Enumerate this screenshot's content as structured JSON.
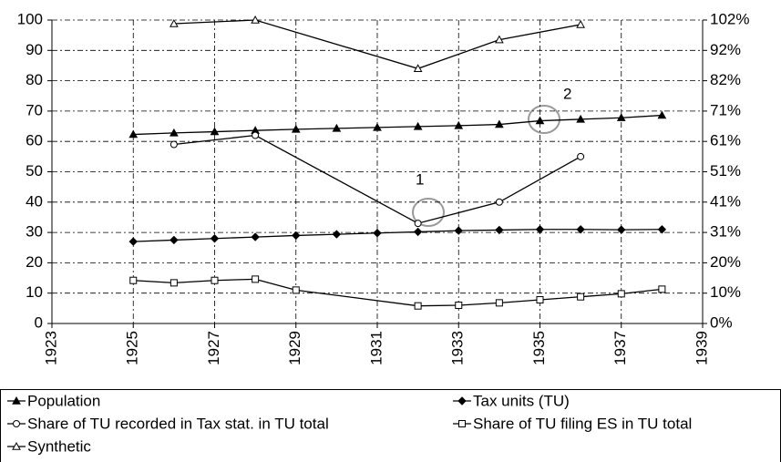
{
  "chart_data": {
    "type": "line",
    "xlim": [
      1923,
      1939
    ],
    "xticks": [
      1923,
      1925,
      1927,
      1929,
      1931,
      1933,
      1935,
      1937,
      1939
    ],
    "ylim": [
      0,
      100
    ],
    "yticks": [
      0,
      10,
      20,
      30,
      40,
      50,
      60,
      70,
      80,
      90,
      100
    ],
    "y2lim": [
      0,
      102
    ],
    "y2ticks": [
      {
        "value": 0,
        "label": "0%"
      },
      {
        "value": 10.2,
        "label": "10%"
      },
      {
        "value": 20.4,
        "label": "20%"
      },
      {
        "value": 30.6,
        "label": "31%"
      },
      {
        "value": 40.8,
        "label": "41%"
      },
      {
        "value": 51,
        "label": "51%"
      },
      {
        "value": 61.2,
        "label": "61%"
      },
      {
        "value": 71.4,
        "label": "71%"
      },
      {
        "value": 81.6,
        "label": "82%"
      },
      {
        "value": 91.8,
        "label": "92%"
      },
      {
        "value": 102,
        "label": "102%"
      }
    ],
    "grid": true,
    "annotations": [
      "1",
      "2"
    ],
    "series": [
      {
        "name": "Population",
        "color": "#000000",
        "marker": "triangle-filled",
        "x": [
          1925,
          1926,
          1927,
          1928,
          1929,
          1930,
          1931,
          1932,
          1933,
          1934,
          1935,
          1936,
          1937,
          1938
        ],
        "values": [
          62.3,
          62.8,
          63.2,
          63.6,
          64,
          64.3,
          64.6,
          64.9,
          65.2,
          65.6,
          66.8,
          67.3,
          67.8,
          68.6
        ]
      },
      {
        "name": "Tax units (TU)",
        "color": "#000000",
        "marker": "diamond-filled",
        "x": [
          1925,
          1926,
          1927,
          1928,
          1929,
          1930,
          1931,
          1932,
          1933,
          1934,
          1935,
          1936,
          1937,
          1938
        ],
        "values": [
          27,
          27.5,
          28,
          28.5,
          29,
          29.4,
          29.8,
          30.2,
          30.6,
          30.8,
          31,
          31,
          30.9,
          31
        ]
      },
      {
        "name": "Share of TU recorded in Tax stat. in TU total",
        "color": "#000000",
        "marker": "circle-open",
        "x": [
          1926,
          1928,
          1932,
          1934,
          1936
        ],
        "values": [
          59,
          62,
          33,
          40,
          55
        ]
      },
      {
        "name": "Share of TU filing ES in TU total",
        "color": "#000000",
        "marker": "square-open",
        "x": [
          1925,
          1926,
          1927,
          1928,
          1929,
          1932,
          1933,
          1934,
          1935,
          1936,
          1937,
          1938
        ],
        "values": [
          14.2,
          13.4,
          14.2,
          14.6,
          11,
          5.8,
          6,
          6.8,
          7.8,
          8.8,
          9.8,
          11.3
        ]
      },
      {
        "name": "Synthetic",
        "color": "#000000",
        "marker": "triangle-open",
        "x": [
          1926,
          1928,
          1932,
          1934,
          1936
        ],
        "values": [
          98.8,
          100,
          84,
          93.5,
          98.5
        ]
      }
    ]
  }
}
